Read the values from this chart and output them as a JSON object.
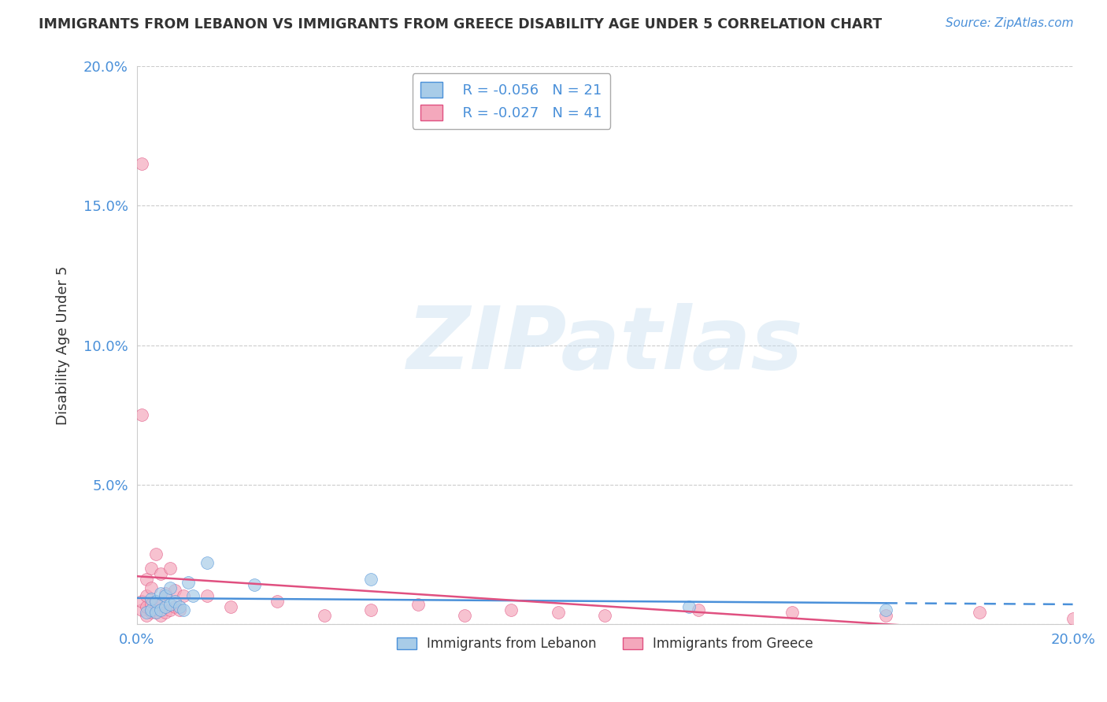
{
  "title": "IMMIGRANTS FROM LEBANON VS IMMIGRANTS FROM GREECE DISABILITY AGE UNDER 5 CORRELATION CHART",
  "source": "Source: ZipAtlas.com",
  "ylabel": "Disability Age Under 5",
  "watermark": "ZIPatlas",
  "xlim": [
    0.0,
    0.2
  ],
  "ylim": [
    0.0,
    0.2
  ],
  "lebanon_color": "#a8cce8",
  "greece_color": "#f4a8bc",
  "lebanon_line_color": "#4a90d9",
  "greece_line_color": "#e05080",
  "legend_R_lebanon": "R = -0.056",
  "legend_N_lebanon": "N = 21",
  "legend_R_greece": "R = -0.027",
  "legend_N_greece": "N = 41",
  "lebanon_x": [
    0.002,
    0.003,
    0.003,
    0.004,
    0.004,
    0.005,
    0.005,
    0.006,
    0.006,
    0.007,
    0.007,
    0.008,
    0.009,
    0.01,
    0.011,
    0.012,
    0.015,
    0.025,
    0.05,
    0.118,
    0.16
  ],
  "lebanon_y": [
    0.004,
    0.005,
    0.009,
    0.004,
    0.008,
    0.005,
    0.011,
    0.006,
    0.01,
    0.007,
    0.013,
    0.008,
    0.006,
    0.005,
    0.015,
    0.01,
    0.022,
    0.014,
    0.016,
    0.006,
    0.005
  ],
  "greece_x": [
    0.001,
    0.001,
    0.001,
    0.001,
    0.002,
    0.002,
    0.002,
    0.002,
    0.003,
    0.003,
    0.003,
    0.003,
    0.004,
    0.004,
    0.004,
    0.005,
    0.005,
    0.005,
    0.006,
    0.006,
    0.007,
    0.007,
    0.008,
    0.008,
    0.009,
    0.01,
    0.015,
    0.02,
    0.03,
    0.04,
    0.05,
    0.06,
    0.07,
    0.08,
    0.09,
    0.1,
    0.12,
    0.14,
    0.16,
    0.18,
    0.2
  ],
  "greece_y": [
    0.005,
    0.008,
    0.075,
    0.165,
    0.003,
    0.006,
    0.01,
    0.016,
    0.004,
    0.007,
    0.013,
    0.02,
    0.004,
    0.008,
    0.025,
    0.003,
    0.007,
    0.018,
    0.004,
    0.011,
    0.005,
    0.02,
    0.006,
    0.012,
    0.005,
    0.01,
    0.01,
    0.006,
    0.008,
    0.003,
    0.005,
    0.007,
    0.003,
    0.005,
    0.004,
    0.003,
    0.005,
    0.004,
    0.003,
    0.004,
    0.002
  ]
}
